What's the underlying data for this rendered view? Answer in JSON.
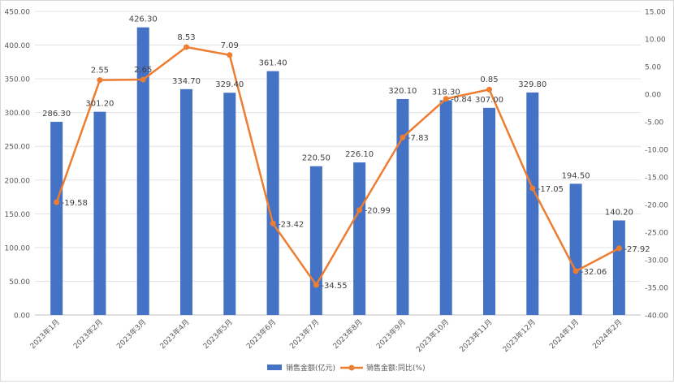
{
  "chart_data": {
    "type": "bar",
    "categories": [
      "2023年1月",
      "2023年2月",
      "2023年3月",
      "2023年4月",
      "2023年5月",
      "2023年6月",
      "2023年7月",
      "2023年8月",
      "2023年9月",
      "2023年10月",
      "2023年11月",
      "2023年12月",
      "2024年1月",
      "2024年2月"
    ],
    "series": [
      {
        "name": "销售金额(亿元)",
        "type": "bar",
        "axis": "left",
        "color": "#4472C4",
        "values": [
          286.3,
          301.2,
          426.3,
          334.7,
          329.4,
          361.4,
          220.5,
          226.1,
          320.1,
          318.3,
          307.0,
          329.8,
          194.5,
          140.2
        ],
        "labels": [
          "286.30",
          "301.20",
          "426.30",
          "334.70",
          "329.40",
          "361.40",
          "220.50",
          "226.10",
          "320.10",
          "318.30",
          "307.00",
          "329.80",
          "194.50",
          "140.20"
        ]
      },
      {
        "name": "销售金额:同比(%)",
        "type": "line",
        "axis": "right",
        "color": "#ED7D31",
        "values": [
          -19.58,
          2.55,
          2.65,
          8.53,
          7.09,
          -23.42,
          -34.55,
          -20.99,
          -7.83,
          -0.84,
          0.85,
          -17.05,
          -32.06,
          -27.92
        ],
        "labels": [
          "-19.58",
          "2.55",
          "2.65",
          "8.53",
          "7.09",
          "-23.42",
          "-34.55",
          "-20.99",
          "-7.83",
          "-0.84",
          "0.85",
          "-17.05",
          "-32.06",
          "-27.92"
        ]
      }
    ],
    "y_left": {
      "lim": [
        0,
        450
      ],
      "ticks": [
        0,
        50,
        100,
        150,
        200,
        250,
        300,
        350,
        400,
        450
      ],
      "tick_labels": [
        "0.00",
        "50.00",
        "100.00",
        "150.00",
        "200.00",
        "250.00",
        "300.00",
        "350.00",
        "400.00",
        "450.00"
      ]
    },
    "y_right": {
      "lim": [
        -40,
        15
      ],
      "ticks": [
        -40,
        -35,
        -30,
        -25,
        -20,
        -15,
        -10,
        -5,
        0,
        5,
        10,
        15
      ],
      "tick_labels": [
        "-40.00",
        "-35.00",
        "-30.00",
        "-25.00",
        "-20.00",
        "-15.00",
        "-10.00",
        "-5.00",
        "0.00",
        "5.00",
        "10.00",
        "15.00"
      ]
    },
    "title": "",
    "xlabel": "",
    "ylabel": "",
    "grid": true,
    "legend_position": "bottom-center"
  }
}
